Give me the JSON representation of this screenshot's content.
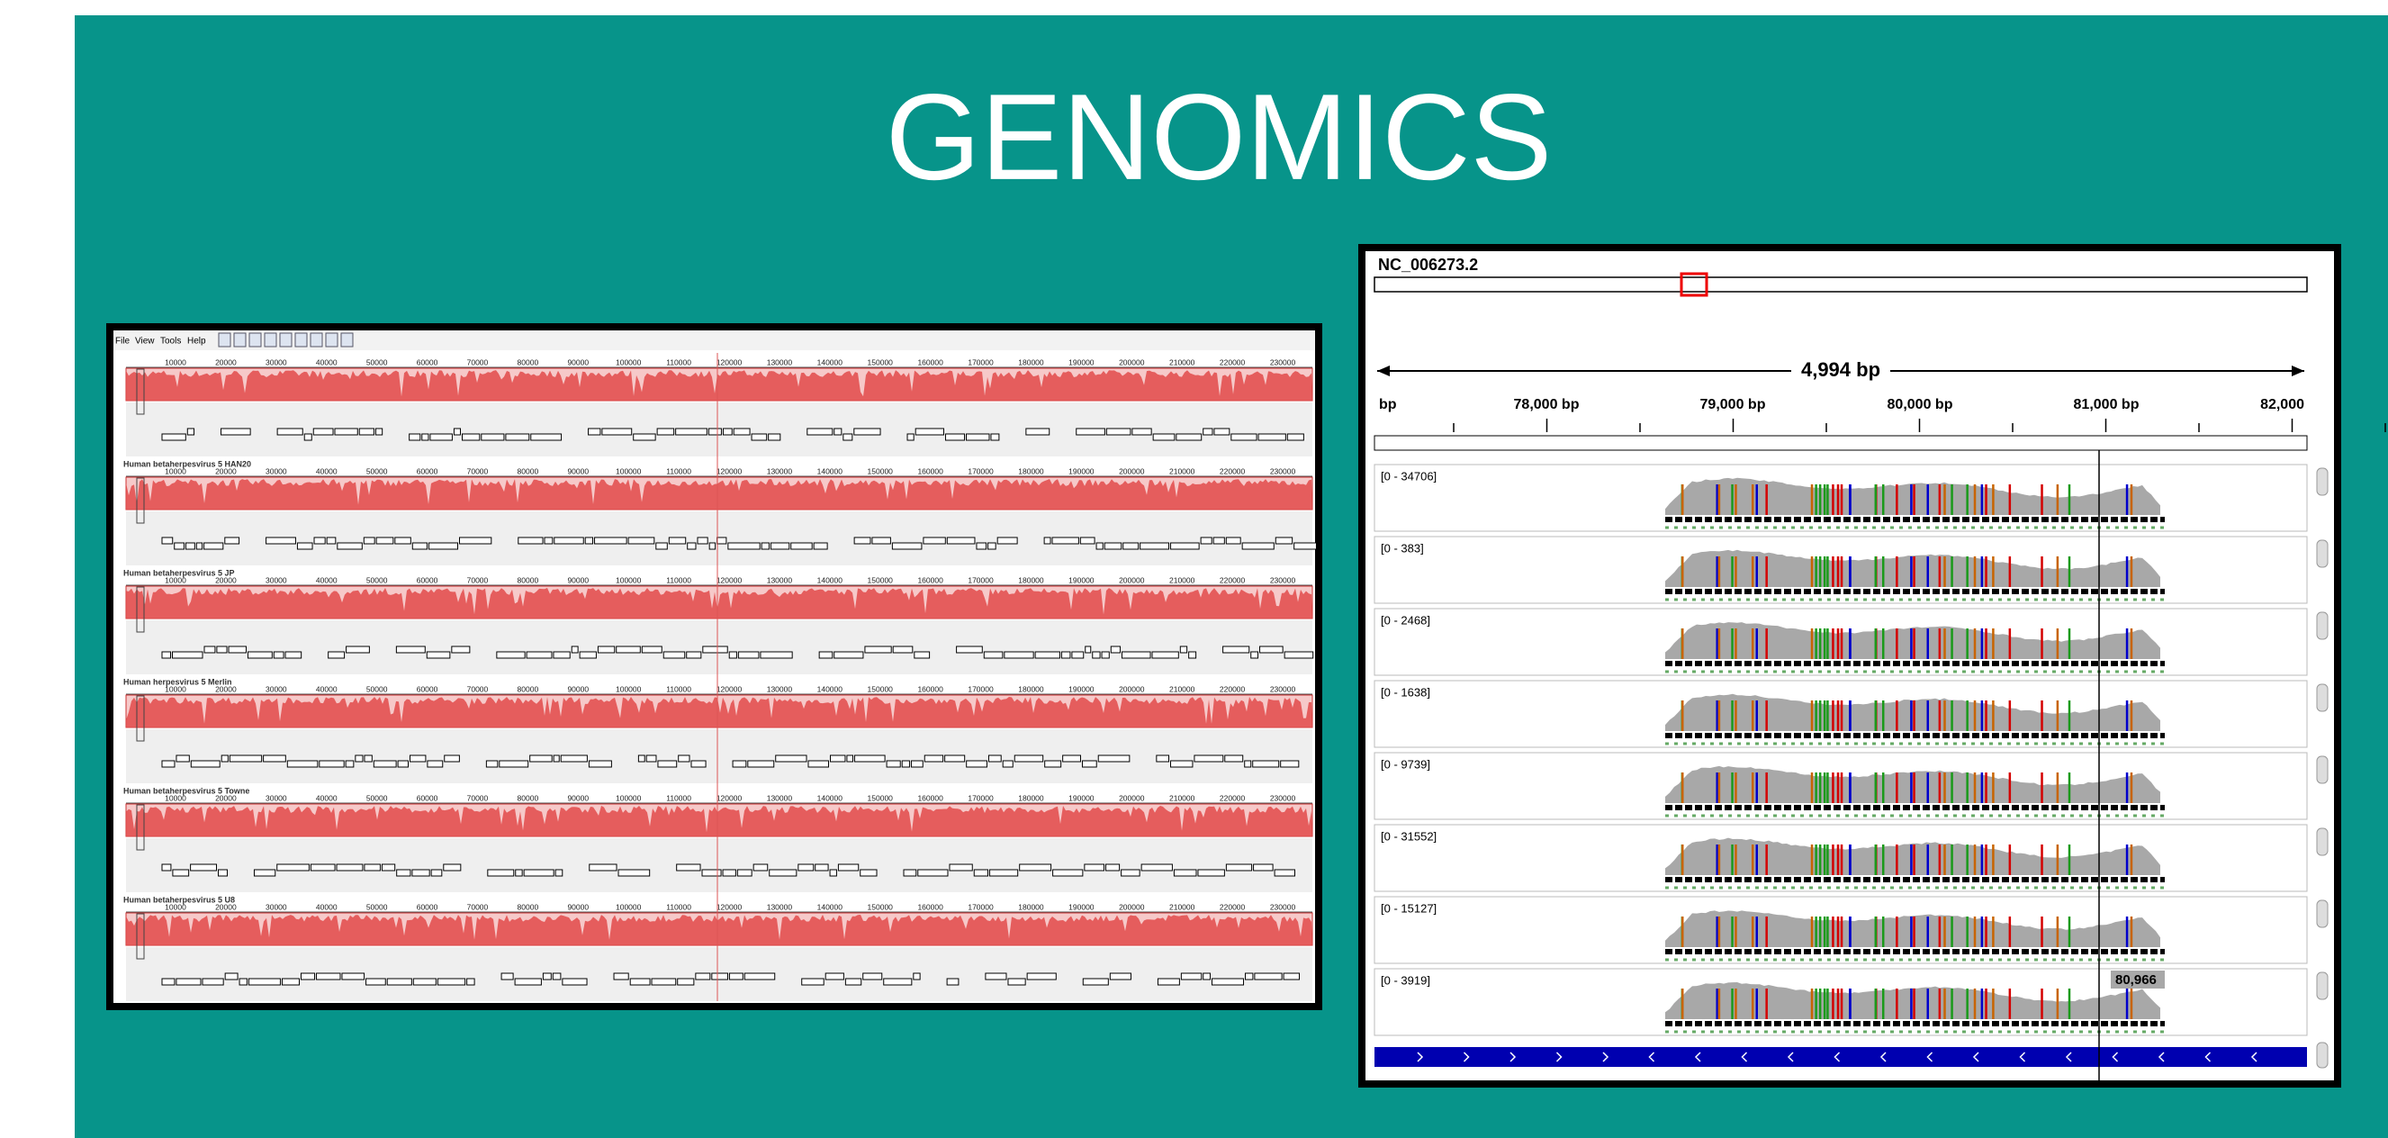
{
  "slide": {
    "title": "GENOMICS"
  },
  "left_viewer": {
    "menu": [
      "File",
      "View",
      "Tools",
      "Help"
    ],
    "ruler": [
      "10000",
      "20000",
      "30000",
      "40000",
      "50000",
      "60000",
      "70000",
      "80000",
      "90000",
      "100000",
      "110000",
      "120000",
      "130000",
      "140000",
      "150000",
      "160000",
      "170000",
      "180000",
      "190000",
      "200000",
      "210000",
      "220000",
      "230000"
    ],
    "genomes": [
      "Human betaherpesvirus 5 HAN20",
      "Human betaherpesvirus 5 JP",
      "Human herpesvirus 5 Merlin",
      "Human betaherpesvirus 5 Towne",
      "Human betaherpesvirus 5 U8"
    ]
  },
  "right_viewer": {
    "sequence": "NC_006273.2",
    "span": "4,994 bp",
    "ruler": [
      "bp",
      "78,000 bp",
      "79,000 bp",
      "80,000 bp",
      "81,000 bp",
      "82,000"
    ],
    "tracks": [
      "[0 - 34706]",
      "[0 - 383]",
      "[0 - 2468]",
      "[0 - 1638]",
      "[0 - 9739]",
      "[0 - 31552]",
      "[0 - 15127]",
      "[0 - 3919]"
    ],
    "position_label": "80,966"
  }
}
